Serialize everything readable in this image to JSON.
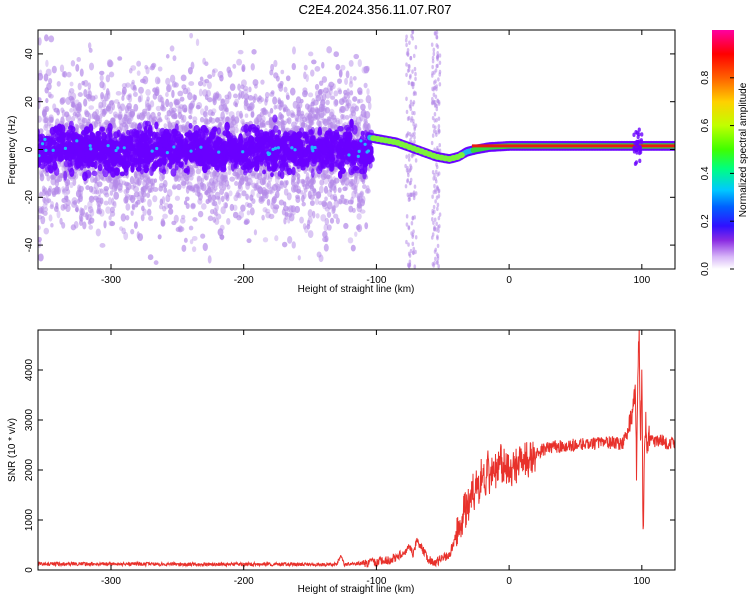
{
  "title": "C2E4.2024.356.11.07.R07",
  "colors": {
    "line": "#e8312b",
    "dots_light": "#b48ae8",
    "dots_dark": "#6a00ff",
    "ridge_strong": "#e81a12",
    "ridge_mid": "#34d640",
    "ridge_low": "#1fb6e6"
  },
  "chart_data": [
    {
      "type": "heatmap",
      "title": "C2E4.2024.356.11.07.R07",
      "xlabel": "Height of straight line (km)",
      "ylabel": "Frequency (Hz)",
      "xlim": [
        -355,
        125
      ],
      "ylim": [
        -50,
        50
      ],
      "xticks": [
        -300,
        -200,
        -100,
        0,
        100
      ],
      "yticks": [
        -40,
        -20,
        0,
        20,
        40
      ],
      "colorbar": {
        "label": "Normalized spectral amplitude",
        "range": [
          0.0,
          1.0
        ],
        "ticks": [
          "0.0",
          "0.2",
          "0.4",
          "0.6",
          "0.8"
        ],
        "colormap": [
          "#ffffff",
          "#d8b8f8",
          "#8a2be2",
          "#3010ff",
          "#0060ff",
          "#00c8ff",
          "#00ff80",
          "#40ff00",
          "#c0ff00",
          "#ffd000",
          "#ff6000",
          "#ff0000",
          "#ff00a0"
        ]
      },
      "ridge": [
        [
          -105,
          5
        ],
        [
          -95,
          4
        ],
        [
          -85,
          3
        ],
        [
          -75,
          1
        ],
        [
          -65,
          -1
        ],
        [
          -55,
          -3
        ],
        [
          -45,
          -4
        ],
        [
          -38,
          -3
        ],
        [
          -32,
          -1
        ],
        [
          -25,
          0
        ],
        [
          -15,
          1
        ],
        [
          0,
          1.5
        ],
        [
          25,
          1.5
        ],
        [
          60,
          1.5
        ],
        [
          95,
          1.5
        ],
        [
          125,
          1.5
        ]
      ]
    },
    {
      "type": "line",
      "xlabel": "Height of straight line (km)",
      "ylabel": "SNR (10 * v/v)",
      "xlim": [
        -355,
        125
      ],
      "ylim": [
        0,
        4800
      ],
      "xticks": [
        -300,
        -200,
        -100,
        0,
        100
      ],
      "yticks": [
        0,
        1000,
        2000,
        3000,
        4000
      ],
      "series": [
        {
          "x": [
            -355,
            -300,
            -250,
            -200,
            -150,
            -130,
            -127,
            -124,
            -120,
            -110,
            -100,
            -90,
            -80,
            -75,
            -72,
            -70,
            -68,
            -65,
            -60,
            -55,
            -50,
            -45,
            -40,
            -35,
            -30,
            -28,
            -26,
            -24,
            -22,
            -20,
            -18,
            -16,
            -14,
            -12,
            -10,
            -8,
            -5,
            0,
            5,
            10,
            15,
            20,
            25,
            30,
            40,
            50,
            60,
            70,
            80,
            85,
            90,
            93,
            95,
            96,
            97,
            98,
            99,
            100,
            101,
            102,
            103,
            104,
            105,
            110,
            115,
            120,
            125
          ],
          "y": [
            120,
            120,
            115,
            115,
            110,
            110,
            280,
            110,
            120,
            130,
            150,
            200,
            320,
            450,
            320,
            600,
            500,
            400,
            200,
            150,
            250,
            300,
            700,
            1100,
            1300,
            1700,
            1400,
            1900,
            1500,
            2200,
            1600,
            2100,
            1700,
            2300,
            1900,
            2200,
            2100,
            2000,
            2100,
            2200,
            2200,
            2300,
            2400,
            2450,
            2480,
            2500,
            2520,
            2550,
            2550,
            2500,
            2800,
            3100,
            3600,
            2000,
            3900,
            4800,
            2500,
            3900,
            600,
            2200,
            3100,
            2400,
            2700,
            2550,
            2600,
            2500,
            2550
          ]
        }
      ]
    }
  ]
}
